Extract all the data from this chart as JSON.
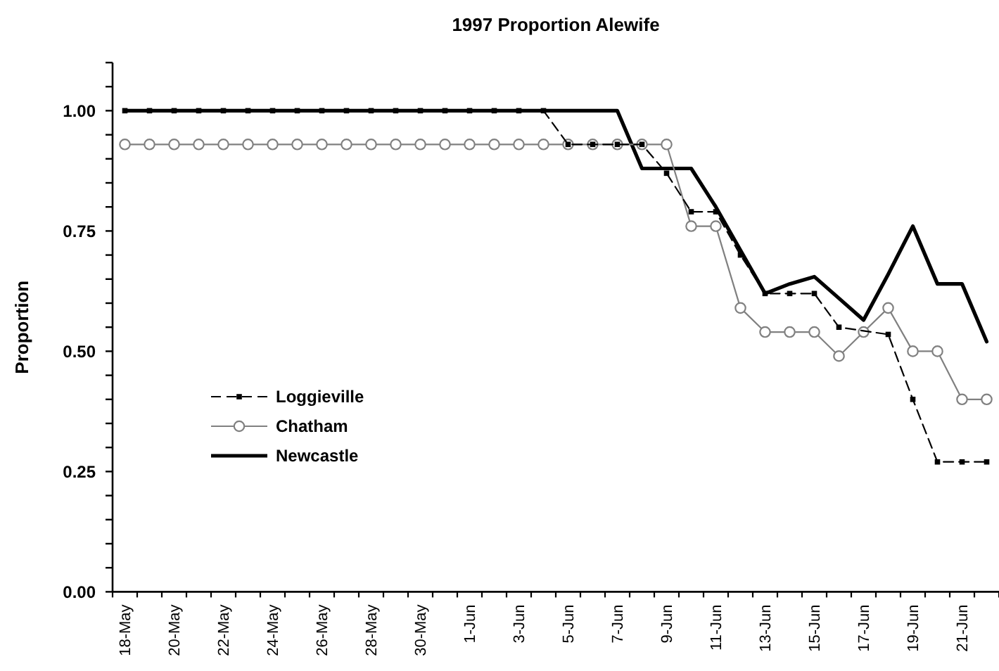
{
  "chart_data": {
    "type": "line",
    "title": "1997 Proportion Alewife",
    "ylabel": "Proportion",
    "categories": [
      "18-May",
      null,
      "20-May",
      null,
      "22-May",
      null,
      "24-May",
      null,
      "26-May",
      null,
      "28-May",
      null,
      "30-May",
      null,
      "1-Jun",
      null,
      "3-Jun",
      null,
      "5-Jun",
      null,
      "7-Jun",
      null,
      "9-Jun",
      null,
      "11-Jun",
      null,
      "13-Jun",
      null,
      "15-Jun",
      null,
      "17-Jun",
      null,
      "19-Jun",
      null,
      "21-Jun",
      null
    ],
    "ylim": [
      0,
      1.1
    ],
    "yticks": [
      {
        "value": 0,
        "label": "0.00"
      },
      {
        "value": 0.05,
        "label": null
      },
      {
        "value": 0.1,
        "label": null
      },
      {
        "value": 0.15,
        "label": null
      },
      {
        "value": 0.2,
        "label": null
      },
      {
        "value": 0.25,
        "label": "0.25"
      },
      {
        "value": 0.3,
        "label": null
      },
      {
        "value": 0.35,
        "label": null
      },
      {
        "value": 0.4,
        "label": null
      },
      {
        "value": 0.45,
        "label": null
      },
      {
        "value": 0.5,
        "label": "0.50"
      },
      {
        "value": 0.55,
        "label": null
      },
      {
        "value": 0.6,
        "label": null
      },
      {
        "value": 0.65,
        "label": null
      },
      {
        "value": 0.7,
        "label": null
      },
      {
        "value": 0.75,
        "label": "0.75"
      },
      {
        "value": 0.8,
        "label": null
      },
      {
        "value": 0.85,
        "label": null
      },
      {
        "value": 0.9,
        "label": null
      },
      {
        "value": 0.95,
        "label": null
      },
      {
        "value": 1,
        "label": "1.00"
      },
      {
        "value": 1.05,
        "label": null
      },
      {
        "value": 1.1,
        "label": null
      }
    ],
    "legend": "left",
    "series": [
      {
        "name": "Loggieville",
        "color": "#000000",
        "marker": "square",
        "line_style": "dashed",
        "values": [
          1,
          1,
          1,
          1,
          1,
          1,
          1,
          1,
          1,
          1,
          1,
          1,
          1,
          1,
          1,
          1,
          1,
          1,
          0.93,
          0.93,
          0.93,
          0.93,
          0.87,
          0.79,
          0.79,
          0.7,
          0.62,
          0.62,
          0.62,
          0.55,
          null,
          0.535,
          0.4,
          0.27,
          0.27,
          0.27
        ]
      },
      {
        "name": "Chatham",
        "color": "#808080",
        "marker": "circle",
        "line_style": "solid",
        "values": [
          0.93,
          0.93,
          0.93,
          0.93,
          0.93,
          0.93,
          0.93,
          0.93,
          0.93,
          0.93,
          0.93,
          0.93,
          0.93,
          0.93,
          0.93,
          0.93,
          0.93,
          0.93,
          0.93,
          0.93,
          0.93,
          0.93,
          0.93,
          0.76,
          0.76,
          0.59,
          0.54,
          0.54,
          0.54,
          0.49,
          0.54,
          0.59,
          0.5,
          0.5,
          0.4,
          0.4
        ]
      },
      {
        "name": "Newcastle",
        "color": "#000000",
        "marker": "none",
        "line_style": "solid",
        "values": [
          1,
          1,
          1,
          1,
          1,
          1,
          1,
          1,
          1,
          1,
          1,
          1,
          1,
          1,
          1,
          1,
          1,
          1,
          1,
          1,
          1,
          0.88,
          0.88,
          0.88,
          0.8,
          0.71,
          0.62,
          0.64,
          0.655,
          0.61,
          0.565,
          0.66,
          0.76,
          0.64,
          0.64,
          0.52
        ]
      }
    ]
  }
}
